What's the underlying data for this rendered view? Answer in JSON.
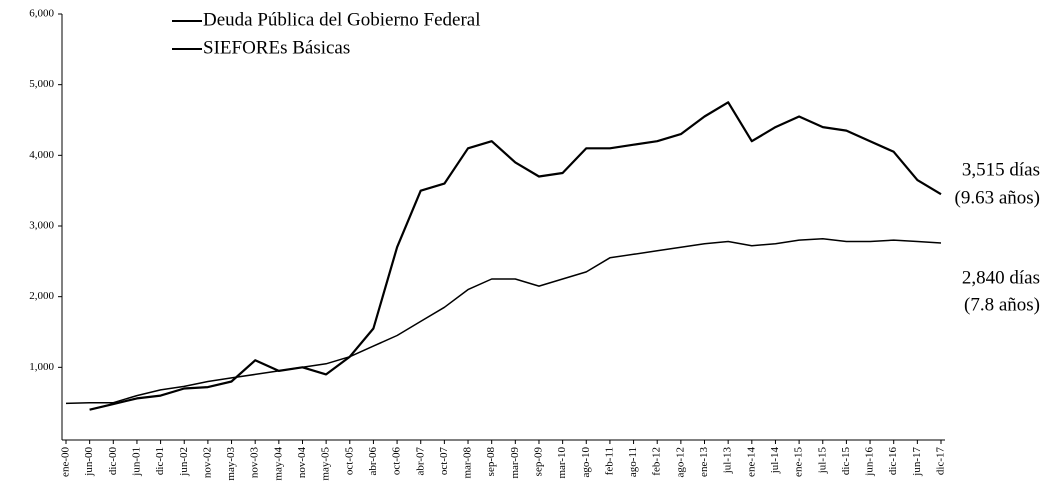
{
  "chart_data": {
    "type": "line",
    "categories": [
      "ene-00",
      "jun-00",
      "dic-00",
      "jun-01",
      "dic-01",
      "jun-02",
      "nov-02",
      "may-03",
      "nov-03",
      "may-04",
      "nov-04",
      "may-05",
      "oct-05",
      "abr-06",
      "oct-06",
      "abr-07",
      "oct-07",
      "mar-08",
      "sep-08",
      "mar-09",
      "sep-09",
      "mar-10",
      "ago-10",
      "feb-11",
      "ago-11",
      "feb-12",
      "ago-12",
      "ene-13",
      "jul-13",
      "ene-14",
      "jul-14",
      "ene-15",
      "jul-15",
      "dic-15",
      "jun-16",
      "dic-16",
      "jun-17",
      "dic-17"
    ],
    "series": [
      {
        "name": "Deuda Pública del Gobierno Federal",
        "color": "#000000",
        "values": [
          null,
          400,
          480,
          560,
          600,
          700,
          720,
          800,
          1100,
          950,
          1000,
          900,
          1150,
          1550,
          2700,
          3500,
          3600,
          4100,
          4200,
          3900,
          3700,
          3750,
          4100,
          4100,
          4150,
          4200,
          4300,
          4550,
          4750,
          4200,
          4400,
          4550,
          4400,
          4350,
          4200,
          4050,
          3650,
          3450
        ]
      },
      {
        "name": "SIEFOREs Básicas",
        "color": "#000000",
        "values": [
          490,
          500,
          500,
          600,
          680,
          730,
          800,
          850,
          900,
          950,
          1000,
          1050,
          1150,
          1300,
          1450,
          1650,
          1850,
          2100,
          2250,
          2250,
          2150,
          2250,
          2350,
          2550,
          2600,
          2650,
          2700,
          2750,
          2780,
          2720,
          2750,
          2800,
          2820,
          2780,
          2780,
          2800,
          2780,
          2760
        ]
      }
    ],
    "annotations": [
      "3,515 días",
      "(9.63 años)",
      "2,840 días",
      "(7.8 años)"
    ],
    "ylim": [
      0,
      6000
    ],
    "yticks": [
      {
        "value": 1000,
        "label": "1,000"
      },
      {
        "value": 2000,
        "label": "2,000"
      },
      {
        "value": 3000,
        "label": "3,000"
      },
      {
        "value": 4000,
        "label": "4,000"
      },
      {
        "value": 5000,
        "label": "5,000"
      },
      {
        "value": 6000,
        "label": "6,000"
      }
    ],
    "grid": false
  }
}
